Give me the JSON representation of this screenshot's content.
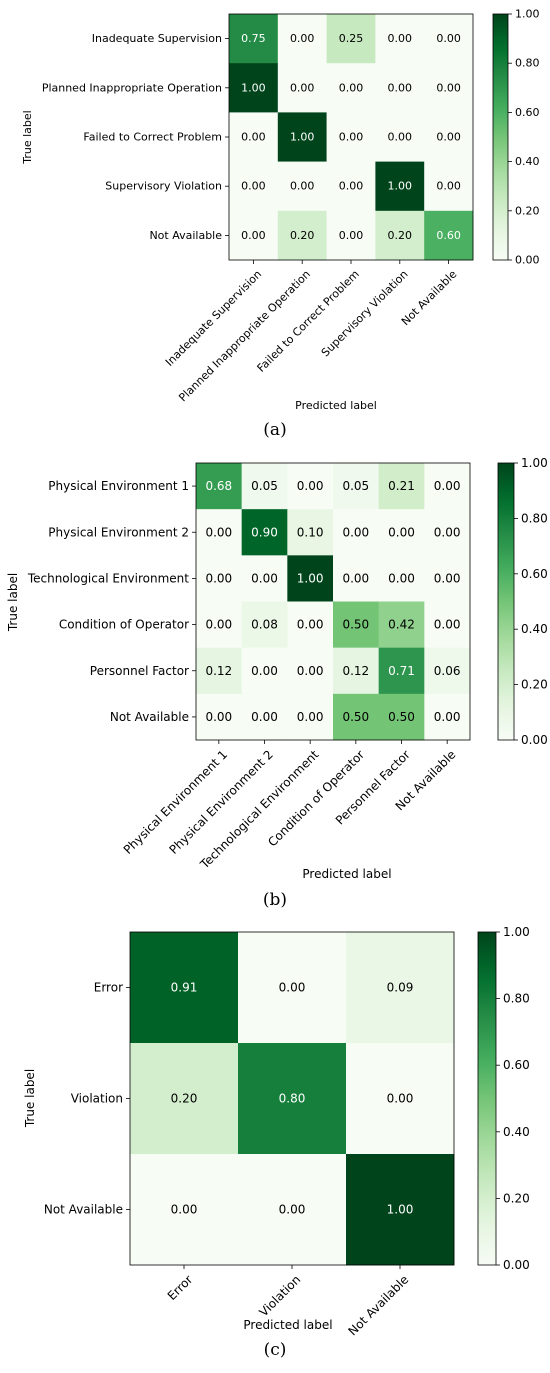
{
  "chart_data": [
    {
      "type": "heatmap",
      "caption": "(a)",
      "xlabel": "Predicted label",
      "ylabel": "True label",
      "rows": [
        "Inadequate Supervision",
        "Planned Inappropriate Operation",
        "Failed to Correct Problem",
        "Supervisory Violation",
        "Not Available"
      ],
      "columns": [
        "Inadequate Supervision",
        "Planned Inappropriate Operation",
        "Failed to Correct Problem",
        "Supervisory Violation",
        "Not Available"
      ],
      "values": [
        [
          0.75,
          0.0,
          0.25,
          0.0,
          0.0
        ],
        [
          1.0,
          0.0,
          0.0,
          0.0,
          0.0
        ],
        [
          0.0,
          1.0,
          0.0,
          0.0,
          0.0
        ],
        [
          0.0,
          0.0,
          0.0,
          1.0,
          0.0
        ],
        [
          0.0,
          0.2,
          0.0,
          0.2,
          0.6
        ]
      ],
      "colorbar": {
        "range": [
          0,
          1
        ],
        "ticks": [
          "0.00",
          "0.20",
          "0.40",
          "0.60",
          "0.80",
          "1.00"
        ]
      },
      "colormap": "Greens"
    },
    {
      "type": "heatmap",
      "caption": "(b)",
      "xlabel": "Predicted label",
      "ylabel": "True label",
      "rows": [
        "Physical Environment 1",
        "Physical Environment 2",
        "Technological Environment",
        "Condition of Operator",
        "Personnel Factor",
        "Not Available"
      ],
      "columns": [
        "Physical Environment 1",
        "Physical Environment 2",
        "Technological Environment",
        "Condition of Operator",
        "Personnel Factor",
        "Not Available"
      ],
      "values": [
        [
          0.68,
          0.05,
          0.0,
          0.05,
          0.21,
          0.0
        ],
        [
          0.0,
          0.9,
          0.1,
          0.0,
          0.0,
          0.0
        ],
        [
          0.0,
          0.0,
          1.0,
          0.0,
          0.0,
          0.0
        ],
        [
          0.0,
          0.08,
          0.0,
          0.5,
          0.42,
          0.0
        ],
        [
          0.12,
          0.0,
          0.0,
          0.12,
          0.71,
          0.06
        ],
        [
          0.0,
          0.0,
          0.0,
          0.5,
          0.5,
          0.0
        ]
      ],
      "colorbar": {
        "range": [
          0,
          1
        ],
        "ticks": [
          "0.00",
          "0.20",
          "0.40",
          "0.60",
          "0.80",
          "1.00"
        ]
      },
      "colormap": "Greens"
    },
    {
      "type": "heatmap",
      "caption": "(c)",
      "xlabel": "Predicted label",
      "ylabel": "True label",
      "rows": [
        "Error",
        "Violation",
        "Not Available"
      ],
      "columns": [
        "Error",
        "Violation",
        "Not Available"
      ],
      "values": [
        [
          0.91,
          0.0,
          0.09
        ],
        [
          0.2,
          0.8,
          0.0
        ],
        [
          0.0,
          0.0,
          1.0
        ]
      ],
      "colorbar": {
        "range": [
          0,
          1
        ],
        "ticks": [
          "0.00",
          "0.20",
          "0.40",
          "0.60",
          "0.80",
          "1.00"
        ]
      },
      "colormap": "Greens"
    }
  ]
}
